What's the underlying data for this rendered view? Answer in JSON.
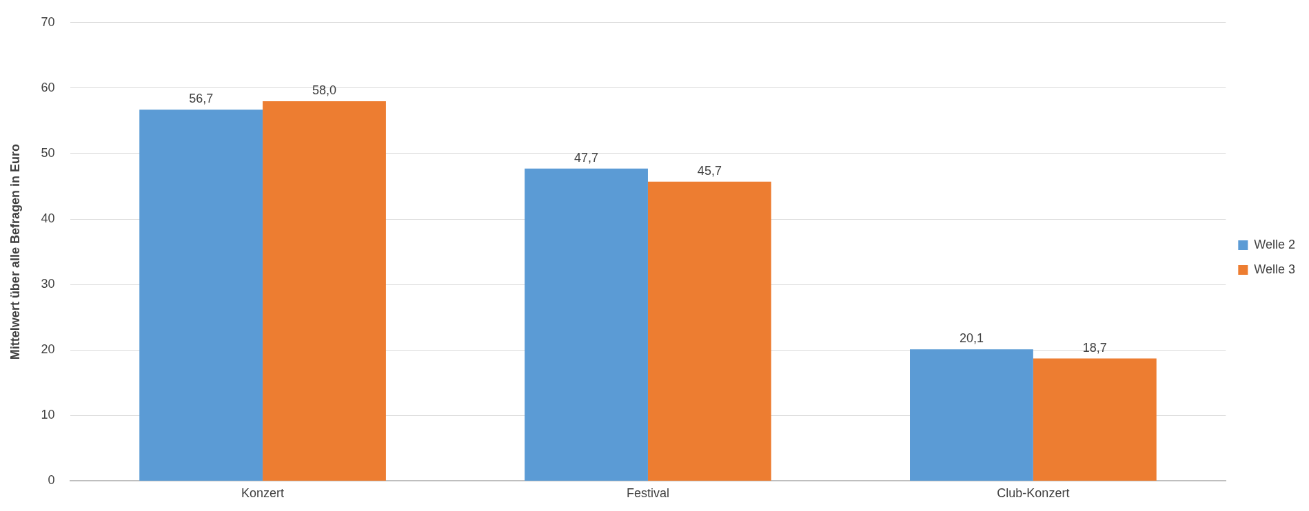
{
  "chart_data": {
    "type": "bar",
    "ylabel": "Mittelwert über alle Befragen in Euro",
    "categories": [
      "Konzert",
      "Festival",
      "Club-Konzert"
    ],
    "series": [
      {
        "name": "Welle 2",
        "color": "#5b9bd5",
        "values": [
          56.7,
          47.7,
          20.1
        ],
        "value_labels": [
          "56,7",
          "47,7",
          "20,1"
        ]
      },
      {
        "name": "Welle 3",
        "color": "#ed7d31",
        "values": [
          58.0,
          45.7,
          18.7
        ],
        "value_labels": [
          "58,0",
          "45,7",
          "18,7"
        ]
      }
    ],
    "ylim": [
      0,
      70
    ],
    "yticks": [
      0,
      10,
      20,
      30,
      40,
      50,
      60,
      70
    ],
    "grid": "y",
    "legend": "right"
  }
}
